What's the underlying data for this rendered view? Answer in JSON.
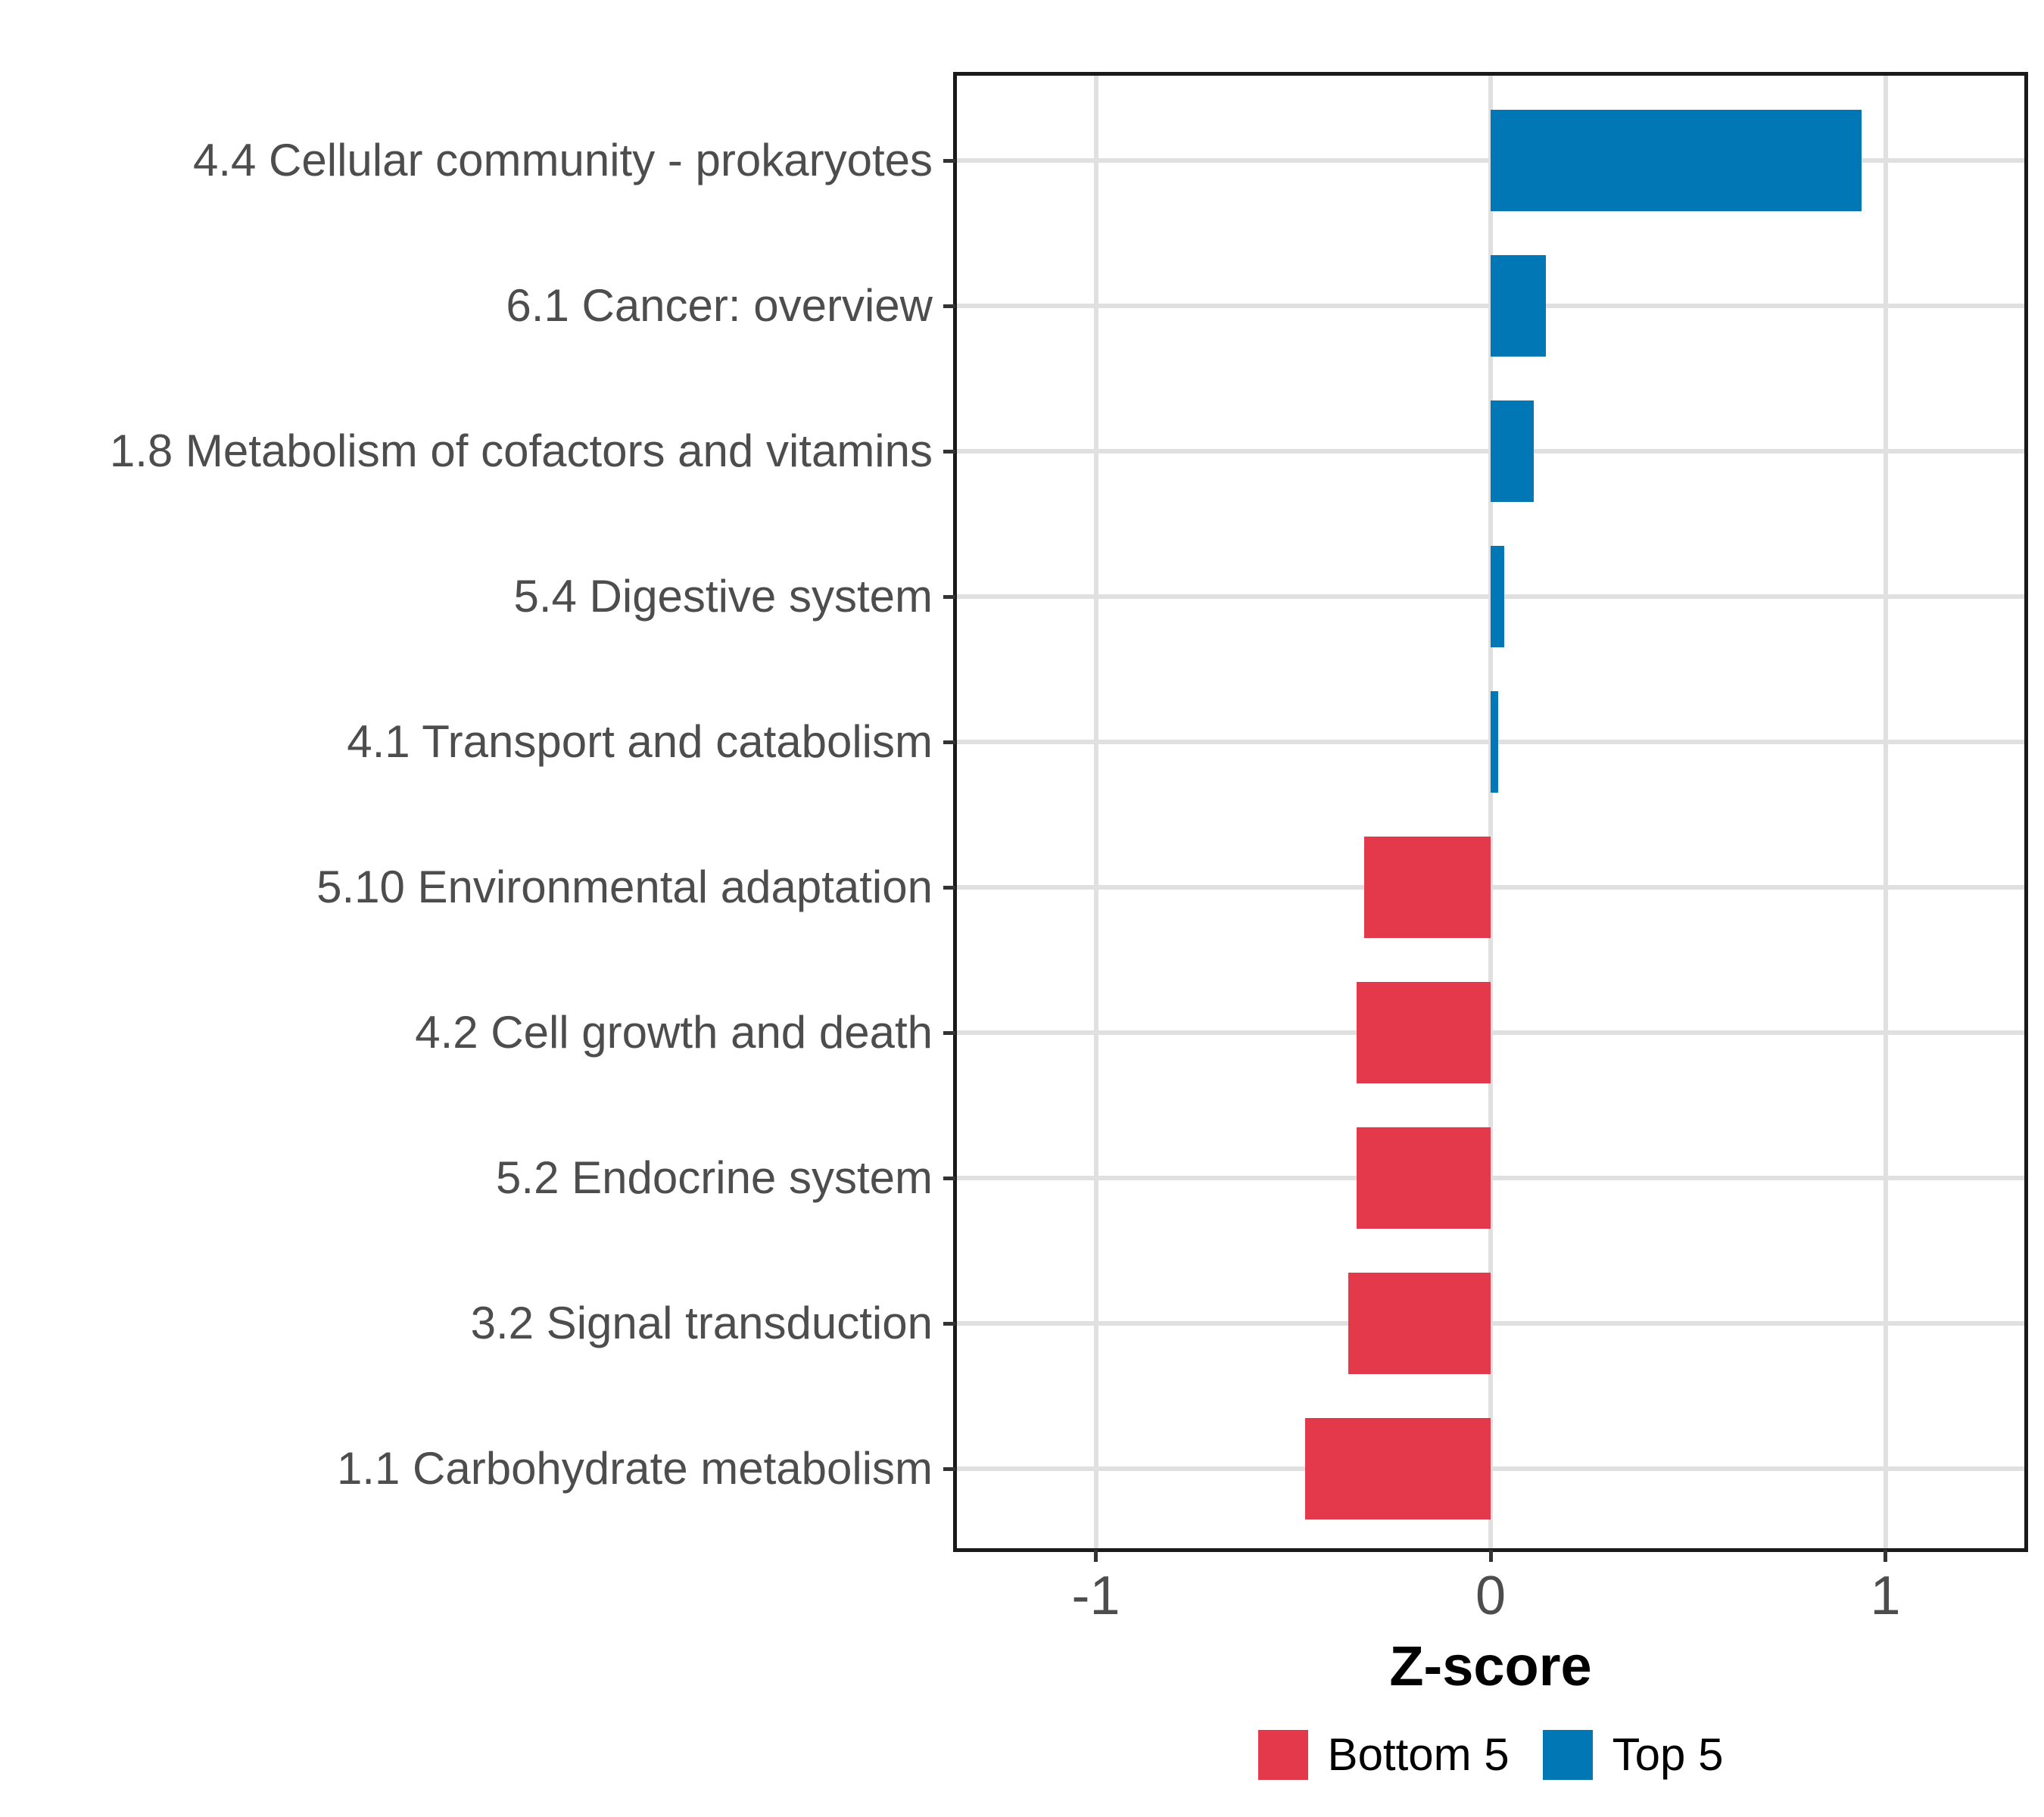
{
  "chart_data": {
    "type": "bar",
    "orientation": "horizontal",
    "title": "",
    "xlabel": "Z-score",
    "ylabel": "",
    "categories": [
      "4.4 Cellular community - prokaryotes",
      "6.1 Cancer: overview",
      "1.8 Metabolism of cofactors and vitamins",
      "5.4 Digestive system",
      "4.1 Transport and catabolism",
      "5.10 Environmental adaptation",
      "4.2 Cell growth and death",
      "5.2 Endocrine system",
      "3.2 Signal transduction",
      "1.1 Carbohydrate metabolism"
    ],
    "values": [
      0.94,
      0.14,
      0.11,
      0.035,
      0.02,
      -0.32,
      -0.34,
      -0.34,
      -0.36,
      -0.47
    ],
    "groups": [
      "Top 5",
      "Top 5",
      "Top 5",
      "Top 5",
      "Top 5",
      "Bottom 5",
      "Bottom 5",
      "Bottom 5",
      "Bottom 5",
      "Bottom 5"
    ],
    "colors": {
      "Bottom 5": "#e4394b",
      "Top 5": "#0277b5"
    },
    "x_tick_labels": [
      "-1",
      "0",
      "1"
    ],
    "x_tick_values": [
      -1,
      0,
      1
    ],
    "xlim": [
      -1.36,
      1.36
    ],
    "bar_width_fraction": 0.7,
    "grid": {
      "show_major": true,
      "color": "#e0e0e0"
    },
    "panel_border_color": "#1a1a1a",
    "axis_text_color": "#4d4d4d",
    "legend": {
      "position": "bottom",
      "entries": [
        {
          "label": "Bottom 5",
          "color": "#e4394b"
        },
        {
          "label": "Top 5",
          "color": "#0277b5"
        }
      ]
    }
  }
}
